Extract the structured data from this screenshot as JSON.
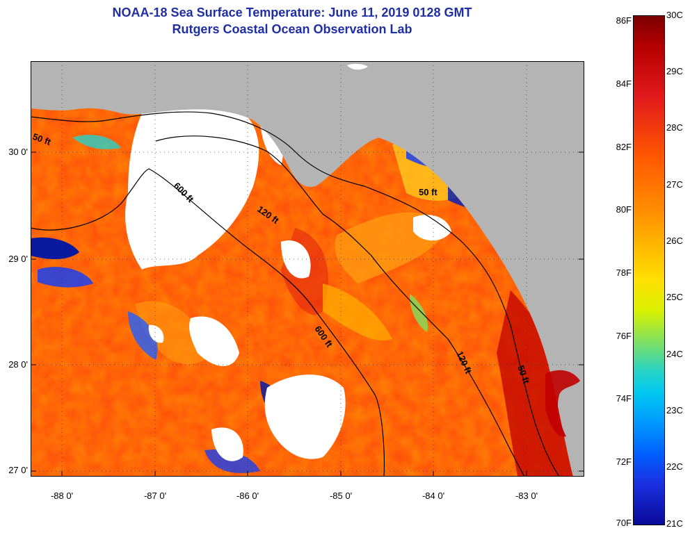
{
  "title": {
    "line1": "NOAA-18 Sea Surface Temperature:  June 11, 2019 0128 GMT",
    "line2": "Rutgers Coastal Ocean Observation Lab"
  },
  "axes": {
    "lat_labels": [
      "30 0'",
      "29 0'",
      "28 0'",
      "27 0'"
    ],
    "lon_labels": [
      "-88 0'",
      "-87 0'",
      "-86 0'",
      "-85 0'",
      "-84 0'",
      "-83 0'"
    ]
  },
  "contours": {
    "label_50ft": "50 ft",
    "label_600ft": "600 ft",
    "label_120ft": "120 ft"
  },
  "colorbar": {
    "f_labels": [
      "86F",
      "84F",
      "82F",
      "80F",
      "78F",
      "76F",
      "74F",
      "72F",
      "70F"
    ],
    "c_labels": [
      "30C",
      "29C",
      "28C",
      "27C",
      "26C",
      "25C",
      "24C",
      "23C",
      "22C",
      "21C"
    ]
  },
  "colors": {
    "land": "#b4b4b4",
    "cloud": "#ffffff",
    "warm_max": "#7a0000",
    "cold_min": "#0a0a9a"
  }
}
